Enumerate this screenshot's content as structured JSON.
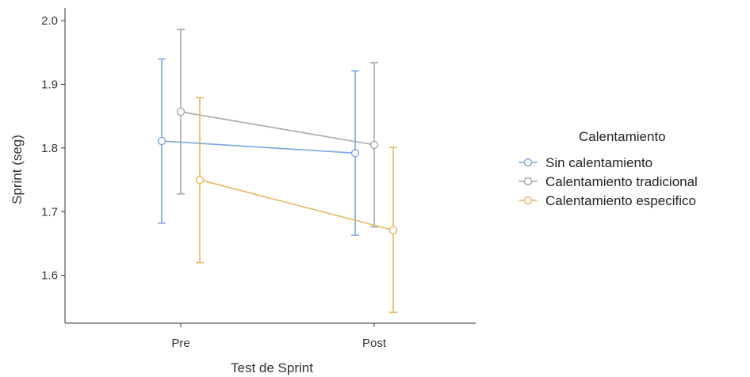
{
  "chart_data": {
    "type": "line",
    "title": "",
    "xlabel": "Test de Sprint",
    "ylabel": "Sprint (seg)",
    "categories": [
      "Pre",
      "Post"
    ],
    "ylim": [
      1.525,
      2.02
    ],
    "yticks": [
      1.6,
      1.7,
      1.8,
      1.9,
      2.0
    ],
    "ytick_labels": [
      "1.6",
      "1.7",
      "1.8",
      "1.9",
      "2.0"
    ],
    "grid": false,
    "legend": {
      "title": "Calentamiento",
      "placement": "right"
    },
    "series": [
      {
        "name": "Sin calentamiento",
        "color": "#7aa6e0",
        "values": [
          1.811,
          1.792
        ],
        "lower": [
          1.682,
          1.663
        ],
        "upper": [
          1.94,
          1.921
        ]
      },
      {
        "name": "Calentamiento tradicional",
        "color": "#a8a8a8",
        "values": [
          1.857,
          1.805
        ],
        "lower": [
          1.728,
          1.676
        ],
        "upper": [
          1.986,
          1.934
        ]
      },
      {
        "name": "Calentamiento especifico",
        "color": "#e8b860",
        "values": [
          1.75,
          1.671
        ],
        "lower": [
          1.62,
          1.542
        ],
        "upper": [
          1.879,
          1.801
        ]
      }
    ]
  }
}
